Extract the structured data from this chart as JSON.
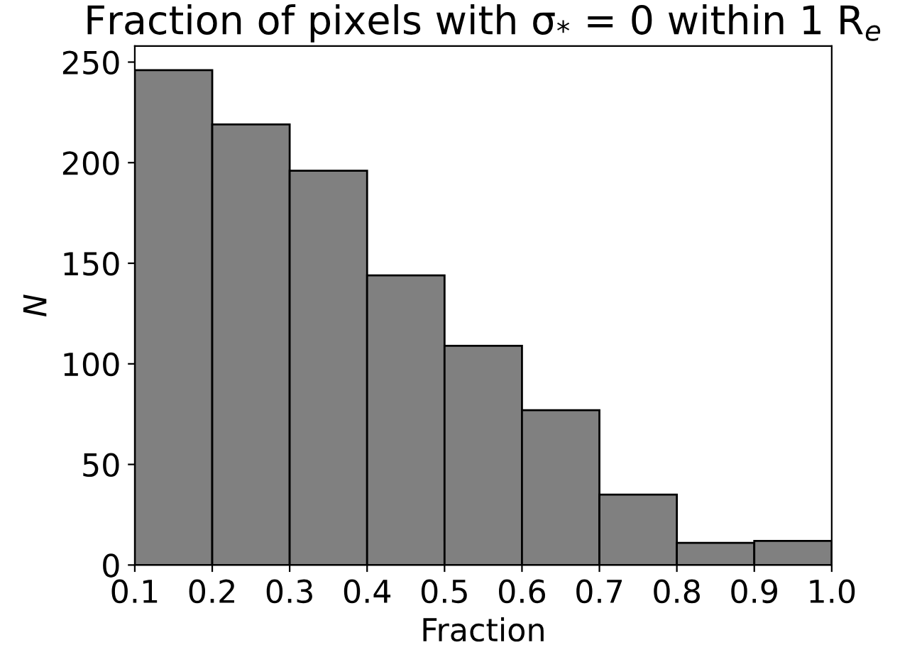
{
  "chart_data": {
    "type": "histogram",
    "title": "Fraction of pixels with σ$_{*}$ = 0 within 1 R$_{e}$",
    "xlabel": "Fraction",
    "ylabel": "N",
    "bins": [
      0.1,
      0.2,
      0.3,
      0.4,
      0.5,
      0.6,
      0.7,
      0.8,
      0.9,
      1.0
    ],
    "values": [
      246,
      219,
      196,
      144,
      109,
      77,
      35,
      11,
      12
    ],
    "color": "#808080",
    "xlim": [
      0.1,
      1.0
    ],
    "ylim": [
      0,
      258
    ],
    "xticks": [
      {
        "value": 0.1,
        "label": "0.1"
      },
      {
        "value": 0.2,
        "label": "0.2"
      },
      {
        "value": 0.3,
        "label": "0.3"
      },
      {
        "value": 0.4,
        "label": "0.4"
      },
      {
        "value": 0.5,
        "label": "0.5"
      },
      {
        "value": 0.6,
        "label": "0.6"
      },
      {
        "value": 0.7,
        "label": "0.7"
      },
      {
        "value": 0.8,
        "label": "0.8"
      },
      {
        "value": 0.9,
        "label": "0.9"
      },
      {
        "value": 1.0,
        "label": "1.0"
      }
    ],
    "yticks": [
      0,
      50,
      100,
      150,
      200,
      250
    ],
    "grid": false
  }
}
